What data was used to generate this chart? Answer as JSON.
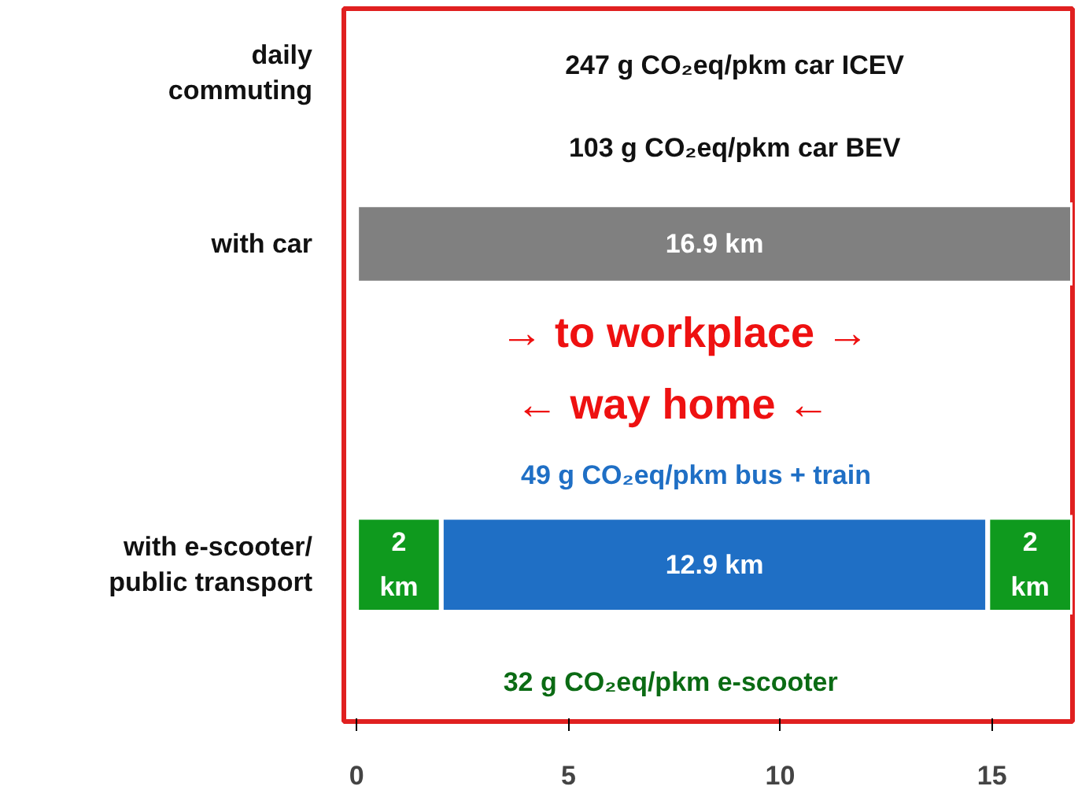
{
  "chart_data": {
    "type": "bar",
    "orientation": "horizontal",
    "stacked": true,
    "title": "daily commuting",
    "categories": [
      "with car",
      "with e-scooter/ public transport"
    ],
    "series": [
      {
        "color": "#808080",
        "values": [
          16.9,
          null
        ],
        "value_labels": [
          "16.9 km",
          null
        ]
      },
      {
        "color": "#0f9a1e",
        "values": [
          null,
          2
        ],
        "value_labels": [
          null,
          "2 km"
        ]
      },
      {
        "color": "#1f6fc5",
        "values": [
          null,
          12.9
        ],
        "value_labels": [
          null,
          "12.9 km"
        ]
      },
      {
        "color": "#0f9a1e",
        "values": [
          null,
          2
        ],
        "value_labels": [
          null,
          "2 km"
        ]
      }
    ],
    "annotations": [
      "247 g CO₂eq/pkm  car  ICEV",
      "103 g CO₂eq/pkm  car  BEV",
      "→   to workplace   →",
      "←    way home    ←",
      "49 g CO₂eq/pkm  bus + train",
      "32 g CO₂eq/pkm  e-scooter"
    ],
    "xlim": [
      -0.3,
      16.9
    ],
    "xticks": [
      0,
      5,
      10,
      15
    ],
    "grid": false
  }
}
